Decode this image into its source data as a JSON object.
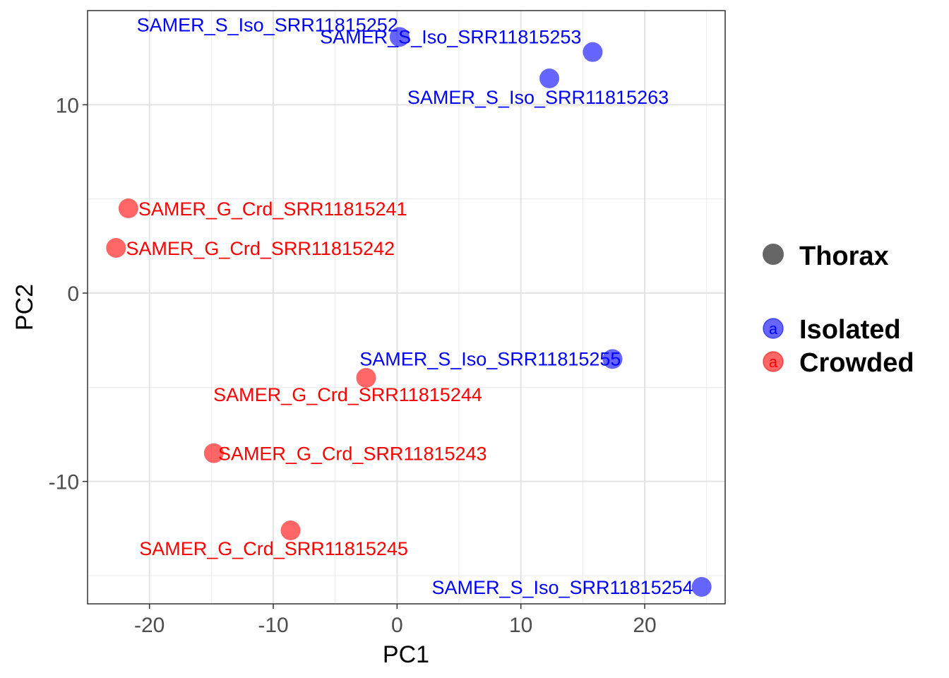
{
  "chart_data": {
    "type": "scatter",
    "title": "",
    "xlabel": "PC1",
    "ylabel": "PC2",
    "xlim": [
      -25,
      26.5
    ],
    "ylim": [
      -16.5,
      15
    ],
    "x_ticks": [
      -20,
      -10,
      0,
      10,
      20
    ],
    "y_ticks": [
      -10,
      0,
      10
    ],
    "grid": true,
    "legend_position": "right",
    "legend": {
      "shape_title": "Thorax",
      "shape_color": "#666666",
      "groups": [
        {
          "name": "Isolated",
          "color": "#0000ff",
          "key_glyph": "a"
        },
        {
          "name": "Crowded",
          "color": "#ff0000",
          "key_glyph": "a"
        }
      ]
    },
    "point_fill_opacity": 0.6,
    "points": [
      {
        "label": "SAMER_S_Iso_SRR11815252",
        "group": "Isolated",
        "x": 0.2,
        "y": 13.6
      },
      {
        "label": "SAMER_S_Iso_SRR11815253",
        "group": "Isolated",
        "x": 15.8,
        "y": 12.8
      },
      {
        "label": "SAMER_S_Iso_SRR11815263",
        "group": "Isolated",
        "x": 12.3,
        "y": 11.4
      },
      {
        "label": "SAMER_G_Crd_SRR11815241",
        "group": "Crowded",
        "x": -21.7,
        "y": 4.5
      },
      {
        "label": "SAMER_G_Crd_SRR11815242",
        "group": "Crowded",
        "x": -22.7,
        "y": 2.4
      },
      {
        "label": "SAMER_S_Iso_SRR11815255",
        "group": "Isolated",
        "x": 17.4,
        "y": -3.5
      },
      {
        "label": "SAMER_G_Crd_SRR11815244",
        "group": "Crowded",
        "x": -2.5,
        "y": -4.5
      },
      {
        "label": "SAMER_G_Crd_SRR11815243",
        "group": "Crowded",
        "x": -14.8,
        "y": -8.5
      },
      {
        "label": "SAMER_G_Crd_SRR11815245",
        "group": "Crowded",
        "x": -8.6,
        "y": -12.6
      },
      {
        "label": "SAMER_S_Iso_SRR11815254",
        "group": "Isolated",
        "x": 24.6,
        "y": -15.6
      }
    ]
  }
}
